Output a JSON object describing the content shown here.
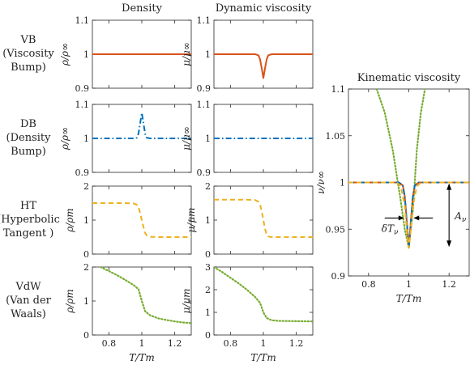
{
  "column_titles": [
    "Density",
    "Dynamic viscosity"
  ],
  "row_labels": [
    [
      "VB",
      "(Viscosity",
      "Bump)"
    ],
    [
      "DB",
      "(Density",
      "Bump)"
    ],
    [
      "HT",
      "(Hyperbolic",
      "Tangent )"
    ],
    [
      "VdW",
      "(Van der",
      "Waals)"
    ]
  ],
  "colors": {
    "VB": "#d95319",
    "DB": "#0072bd",
    "HT": "#edb120",
    "VdW": "#77ac30"
  },
  "annotations": {
    "delta_T": "δT",
    "delta_T_sub": "ν",
    "A": "A",
    "A_sub": "ν"
  },
  "chart_data": [
    {
      "id": "vb-density",
      "type": "line",
      "row": 0,
      "col": 0,
      "xlim": [
        0.7,
        1.3
      ],
      "ylim": [
        0.9,
        1.1
      ],
      "yticks": [
        "0.9",
        "1",
        "1.1"
      ],
      "xticks": [],
      "ylabel": "ρ/ρ∞",
      "series": [
        {
          "style": "solid",
          "color_key": "VB",
          "x": [
            0.7,
            1.3
          ],
          "y": [
            1.0,
            1.0
          ]
        }
      ]
    },
    {
      "id": "vb-viscosity",
      "type": "line",
      "row": 0,
      "col": 1,
      "xlim": [
        0.7,
        1.3
      ],
      "ylim": [
        0.9,
        1.1
      ],
      "yticks": [
        "0.9",
        "1",
        "1.1"
      ],
      "xticks": [],
      "ylabel": "μ/μ∞",
      "series": [
        {
          "style": "solid",
          "color_key": "VB",
          "x": [
            0.7,
            0.9,
            0.95,
            0.97,
            0.98,
            0.99,
            1.0,
            1.01,
            1.02,
            1.03,
            1.05,
            1.1,
            1.3
          ],
          "y": [
            1.0,
            1.0,
            1.0,
            0.997,
            0.985,
            0.958,
            0.93,
            0.958,
            0.985,
            0.997,
            1.0,
            1.0,
            1.0
          ]
        }
      ]
    },
    {
      "id": "db-density",
      "type": "line",
      "row": 1,
      "col": 0,
      "xlim": [
        0.7,
        1.3
      ],
      "ylim": [
        0.9,
        1.1
      ],
      "yticks": [
        "0.9",
        "1",
        "1.1"
      ],
      "xticks": [],
      "ylabel": "ρ/ρ∞",
      "series": [
        {
          "style": "dashdot",
          "color_key": "DB",
          "x": [
            0.7,
            0.9,
            0.95,
            0.97,
            0.98,
            0.99,
            1.0,
            1.01,
            1.02,
            1.03,
            1.05,
            1.1,
            1.3
          ],
          "y": [
            1.0,
            1.0,
            1.0,
            1.002,
            1.014,
            1.045,
            1.075,
            1.045,
            1.014,
            1.002,
            1.0,
            1.0,
            1.0
          ]
        }
      ]
    },
    {
      "id": "db-viscosity",
      "type": "line",
      "row": 1,
      "col": 1,
      "xlim": [
        0.7,
        1.3
      ],
      "ylim": [
        0.9,
        1.1
      ],
      "yticks": [
        "0.9",
        "1",
        "1.1"
      ],
      "xticks": [],
      "ylabel": "μ/μ∞",
      "series": [
        {
          "style": "dashdot",
          "color_key": "DB",
          "x": [
            0.7,
            1.3
          ],
          "y": [
            1.0,
            1.0
          ]
        }
      ]
    },
    {
      "id": "ht-density",
      "type": "line",
      "row": 2,
      "col": 0,
      "xlim": [
        0.7,
        1.3
      ],
      "ylim": [
        0,
        2
      ],
      "yticks": [
        "0",
        "1",
        "2"
      ],
      "xticks": [],
      "ylabel": "ρ/ρm",
      "series": [
        {
          "style": "dashed",
          "color_key": "HT",
          "x": [
            0.7,
            0.9,
            0.95,
            0.97,
            0.98,
            0.99,
            1.0,
            1.01,
            1.02,
            1.03,
            1.05,
            1.1,
            1.3
          ],
          "y": [
            1.5,
            1.5,
            1.49,
            1.45,
            1.38,
            1.2,
            1.0,
            0.8,
            0.62,
            0.55,
            0.51,
            0.5,
            0.5
          ]
        }
      ]
    },
    {
      "id": "ht-viscosity",
      "type": "line",
      "row": 2,
      "col": 1,
      "xlim": [
        0.7,
        1.3
      ],
      "ylim": [
        0,
        2
      ],
      "yticks": [
        "0",
        "1",
        "2"
      ],
      "xticks": [],
      "ylabel": "μ/μm",
      "series": [
        {
          "style": "dashed",
          "color_key": "HT",
          "x": [
            0.7,
            0.9,
            0.95,
            0.97,
            0.98,
            0.99,
            1.0,
            1.01,
            1.02,
            1.03,
            1.05,
            1.1,
            1.3
          ],
          "y": [
            1.6,
            1.6,
            1.59,
            1.54,
            1.46,
            1.26,
            1.0,
            0.75,
            0.57,
            0.52,
            0.5,
            0.5,
            0.5
          ]
        }
      ]
    },
    {
      "id": "vdw-density",
      "type": "line",
      "row": 3,
      "col": 0,
      "xlim": [
        0.7,
        1.3
      ],
      "ylim": [
        0,
        2
      ],
      "yticks": [
        "0",
        "1",
        "2"
      ],
      "xticks": [
        "0.8",
        "1",
        "1.2"
      ],
      "xtick_values": [
        0.8,
        1.0,
        1.2
      ],
      "ylabel": "ρ/ρm",
      "xlabel": "T/Tm",
      "series": [
        {
          "style": "dotted",
          "color_key": "VdW",
          "x": [
            0.75,
            0.8,
            0.85,
            0.9,
            0.95,
            0.98,
            1.0,
            1.02,
            1.05,
            1.1,
            1.15,
            1.2,
            1.25,
            1.3
          ],
          "y": [
            2.0,
            1.88,
            1.76,
            1.62,
            1.47,
            1.35,
            1.0,
            0.7,
            0.58,
            0.49,
            0.44,
            0.4,
            0.37,
            0.35
          ]
        }
      ]
    },
    {
      "id": "vdw-viscosity",
      "type": "line",
      "row": 3,
      "col": 1,
      "xlim": [
        0.7,
        1.3
      ],
      "ylim": [
        0,
        3
      ],
      "yticks": [
        "0",
        "1",
        "2",
        "3"
      ],
      "xticks": [
        "0.8",
        "1",
        "1.2"
      ],
      "xtick_values": [
        0.8,
        1.0,
        1.2
      ],
      "ylabel": "μ/μm",
      "xlabel": "T/Tm",
      "series": [
        {
          "style": "dotted",
          "color_key": "VdW",
          "x": [
            0.7,
            0.75,
            0.8,
            0.85,
            0.9,
            0.95,
            0.98,
            1.0,
            1.02,
            1.05,
            1.1,
            1.2,
            1.3
          ],
          "y": [
            3.0,
            2.78,
            2.53,
            2.28,
            2.0,
            1.68,
            1.42,
            1.0,
            0.75,
            0.65,
            0.62,
            0.61,
            0.6
          ]
        }
      ]
    },
    {
      "id": "kinematic",
      "type": "line",
      "title": "Kinematic viscosity",
      "xlim": [
        0.7,
        1.3
      ],
      "ylim": [
        0.9,
        1.1
      ],
      "yticks": [
        "0.9",
        "0.95",
        "1",
        "1.05",
        "1.1"
      ],
      "ytick_values": [
        0.9,
        0.95,
        1.0,
        1.05,
        1.1
      ],
      "xticks": [
        "0.8",
        "1",
        "1.2"
      ],
      "xtick_values": [
        0.8,
        1.0,
        1.2
      ],
      "ylabel": "ν/ν∞",
      "xlabel": "T/Tm",
      "series": [
        {
          "style": "dotted",
          "color_key": "VdW",
          "x": [
            0.84,
            0.88,
            0.92,
            0.96,
            0.98,
            1.0,
            1.02,
            1.04,
            1.06,
            1.08
          ],
          "y": [
            1.1,
            1.075,
            1.035,
            0.98,
            0.95,
            0.93,
            0.97,
            1.035,
            1.075,
            1.1
          ]
        },
        {
          "style": "solid",
          "color_key": "VB",
          "x": [
            0.7,
            0.95,
            0.97,
            0.98,
            0.99,
            1.0,
            1.01,
            1.02,
            1.03,
            1.05,
            1.3
          ],
          "y": [
            1.0,
            1.0,
            0.997,
            0.985,
            0.958,
            0.93,
            0.958,
            0.985,
            0.997,
            1.0,
            1.0
          ]
        },
        {
          "style": "dashdot",
          "color_key": "DB",
          "x": [
            0.7,
            0.95,
            0.97,
            0.98,
            0.99,
            1.0,
            1.01,
            1.02,
            1.03,
            1.05,
            1.3
          ],
          "y": [
            1.0,
            1.0,
            0.997,
            0.985,
            0.958,
            0.93,
            0.958,
            0.985,
            0.997,
            1.0,
            1.0
          ]
        },
        {
          "style": "dashed",
          "color_key": "HT",
          "x": [
            0.7,
            0.94,
            0.96,
            0.98,
            0.99,
            1.0,
            1.01,
            1.02,
            1.04,
            1.06,
            1.3
          ],
          "y": [
            1.0,
            1.0,
            0.996,
            0.975,
            0.95,
            0.93,
            0.95,
            0.975,
            0.996,
            1.0,
            1.0
          ]
        }
      ]
    }
  ]
}
